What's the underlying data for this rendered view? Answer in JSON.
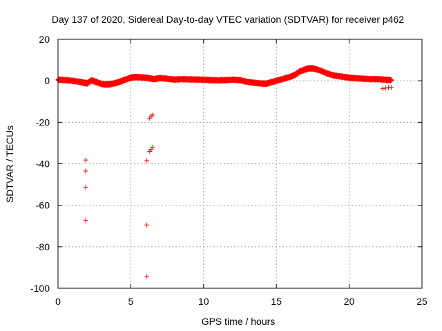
{
  "chart_data": {
    "type": "scatter",
    "title": "Day 137 of 2020, Sidereal Day-to-day VTEC variation (SDTVAR) for receiver p462",
    "xlabel": "GPS time / hours",
    "ylabel": "SDTVAR / TECUs",
    "xlim": [
      0,
      25
    ],
    "ylim": [
      -100,
      20
    ],
    "xticks": [
      0,
      5,
      10,
      15,
      20,
      25
    ],
    "yticks": [
      -100,
      -80,
      -60,
      -40,
      -20,
      0,
      20
    ],
    "grid": true,
    "marker": "+",
    "color": "#ff0000",
    "series": [
      {
        "name": "SDTVAR",
        "trend": [
          [
            0.0,
            0.5
          ],
          [
            0.5,
            0.3
          ],
          [
            1.0,
            0.0
          ],
          [
            1.5,
            -0.5
          ],
          [
            1.8,
            -1.0
          ],
          [
            2.0,
            -1.2
          ],
          [
            2.3,
            0.2
          ],
          [
            2.6,
            -0.5
          ],
          [
            3.0,
            -1.5
          ],
          [
            3.3,
            -1.8
          ],
          [
            3.6,
            -1.6
          ],
          [
            4.0,
            -1.0
          ],
          [
            4.3,
            -0.3
          ],
          [
            4.6,
            0.5
          ],
          [
            5.0,
            1.5
          ],
          [
            5.3,
            1.8
          ],
          [
            5.6,
            1.7
          ],
          [
            6.0,
            1.5
          ],
          [
            6.3,
            1.2
          ],
          [
            6.6,
            0.8
          ],
          [
            7.0,
            1.3
          ],
          [
            7.5,
            1.0
          ],
          [
            8.0,
            0.6
          ],
          [
            8.5,
            0.8
          ],
          [
            9.0,
            0.7
          ],
          [
            9.5,
            0.6
          ],
          [
            10.0,
            0.5
          ],
          [
            10.5,
            0.3
          ],
          [
            11.0,
            0.2
          ],
          [
            11.5,
            0.3
          ],
          [
            12.0,
            0.5
          ],
          [
            12.5,
            0.3
          ],
          [
            13.0,
            -0.5
          ],
          [
            13.5,
            -1.0
          ],
          [
            14.0,
            -1.3
          ],
          [
            14.3,
            -1.4
          ],
          [
            14.6,
            -0.8
          ],
          [
            15.0,
            0.0
          ],
          [
            15.5,
            1.0
          ],
          [
            16.0,
            2.0
          ],
          [
            16.3,
            3.0
          ],
          [
            16.6,
            4.5
          ],
          [
            17.0,
            5.5
          ],
          [
            17.2,
            6.0
          ],
          [
            17.5,
            6.0
          ],
          [
            18.0,
            5.0
          ],
          [
            18.5,
            3.5
          ],
          [
            19.0,
            2.5
          ],
          [
            19.5,
            2.0
          ],
          [
            20.0,
            1.5
          ],
          [
            20.5,
            1.2
          ],
          [
            21.0,
            1.0
          ],
          [
            21.5,
            0.8
          ],
          [
            22.0,
            0.8
          ],
          [
            22.5,
            0.5
          ],
          [
            22.9,
            0.3
          ]
        ],
        "points": [
          [
            22.3,
            -3.8
          ],
          [
            22.5,
            -3.5
          ],
          [
            22.7,
            -3.3
          ],
          [
            22.9,
            -3.2
          ],
          [
            6.3,
            -18.0
          ],
          [
            6.4,
            -17.0
          ],
          [
            6.5,
            -16.5
          ],
          [
            6.3,
            -34.0
          ],
          [
            6.4,
            -33.0
          ],
          [
            6.5,
            -32.0
          ],
          [
            1.9,
            -38.2
          ],
          [
            1.9,
            -43.5
          ],
          [
            1.9,
            -51.3
          ],
          [
            1.9,
            -67.3
          ],
          [
            6.1,
            -38.5
          ],
          [
            6.1,
            -69.5
          ],
          [
            6.1,
            -94.3
          ]
        ]
      }
    ]
  }
}
